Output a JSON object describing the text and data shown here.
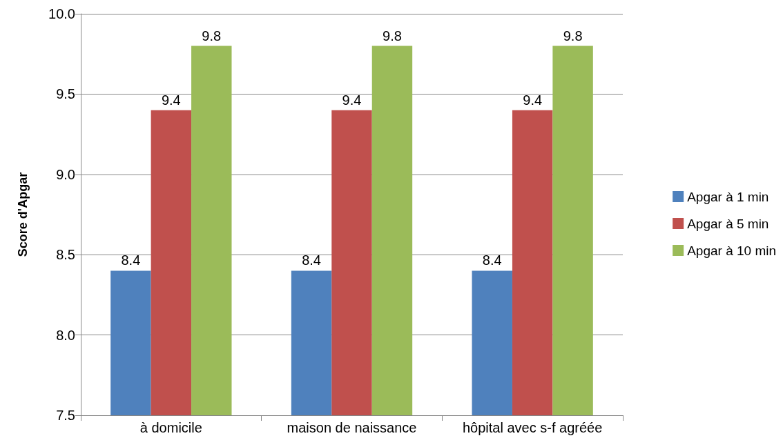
{
  "chart_data": {
    "type": "bar",
    "ylabel": "Score d'Apgar",
    "categories": [
      "à domicile",
      "maison de naissance",
      "hôpital avec s-f agréée"
    ],
    "series": [
      {
        "name": "Apgar à 1 min",
        "color": "#4f81bd",
        "values": [
          8.4,
          8.4,
          8.4
        ]
      },
      {
        "name": "Apgar à 5 min",
        "color": "#c0504d",
        "values": [
          9.4,
          9.4,
          9.4
        ]
      },
      {
        "name": "Apgar à 10 min",
        "color": "#9bbb59",
        "values": [
          9.8,
          9.8,
          9.8
        ]
      }
    ],
    "ylim": [
      7.5,
      10
    ],
    "yticks": [
      7.5,
      {
        "value": 8,
        "label": "8.0"
      },
      8.5,
      {
        "value": 9,
        "label": "9.0"
      },
      9.5,
      {
        "value": 10,
        "label": "10.0"
      }
    ],
    "grid": "y",
    "legend": "right",
    "data_labels": true
  }
}
